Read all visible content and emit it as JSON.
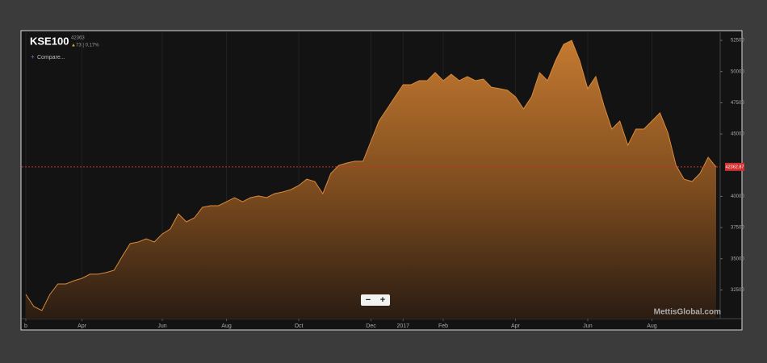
{
  "chart_data": {
    "type": "area",
    "symbol": "KSE100",
    "last": 42363,
    "change": "73 | 0.17%",
    "compare": "Compare...",
    "watermark": "MettisGlobal.com",
    "zoom_out": "−",
    "zoom_in": "+",
    "last_price": 42362.87,
    "color": "#c8782a",
    "categories": [
      "b",
      null,
      null,
      null,
      null,
      null,
      null,
      "Apr",
      null,
      null,
      null,
      null,
      null,
      null,
      null,
      null,
      null,
      "Jun",
      null,
      null,
      null,
      null,
      null,
      null,
      null,
      "Aug",
      null,
      null,
      null,
      null,
      null,
      null,
      null,
      null,
      "Oct",
      null,
      null,
      null,
      null,
      null,
      null,
      null,
      null,
      "Dec",
      null,
      null,
      null,
      "2017",
      null,
      null,
      null,
      null,
      "Feb",
      null,
      null,
      null,
      null,
      null,
      null,
      null,
      null,
      "Apr",
      null,
      null,
      null,
      null,
      null,
      null,
      null,
      null,
      "Jun",
      null,
      null,
      null,
      null,
      null,
      null,
      null,
      "Aug",
      null,
      null,
      null,
      null,
      null,
      null,
      null,
      null
    ],
    "values": [
      32140,
      31170,
      30850,
      32140,
      32980,
      32980,
      33240,
      33430,
      33760,
      33760,
      33890,
      34080,
      35180,
      36210,
      36340,
      36600,
      36340,
      36990,
      37380,
      38600,
      37960,
      38280,
      39120,
      39250,
      39250,
      39570,
      39900,
      39570,
      39900,
      40030,
      39900,
      40220,
      40350,
      40540,
      40870,
      41380,
      41190,
      40220,
      41840,
      42480,
      42680,
      42810,
      42810,
      44420,
      46040,
      47010,
      47980,
      48950,
      48950,
      49270,
      49270,
      49920,
      49270,
      49790,
      49270,
      49600,
      49270,
      49400,
      48750,
      48630,
      48500,
      47980,
      47010,
      47980,
      49920,
      49270,
      50890,
      52180,
      52500,
      50890,
      48630,
      49600,
      47330,
      45390,
      46040,
      44100,
      45390,
      45390,
      46040,
      46690,
      45070,
      42480,
      41380,
      41190,
      41840,
      43130,
      42350
    ],
    "ylim": [
      30200,
      53150
    ],
    "yticks": [
      32500,
      35000,
      37500,
      40000,
      45000,
      47500,
      50000,
      52500
    ],
    "grid": false
  }
}
